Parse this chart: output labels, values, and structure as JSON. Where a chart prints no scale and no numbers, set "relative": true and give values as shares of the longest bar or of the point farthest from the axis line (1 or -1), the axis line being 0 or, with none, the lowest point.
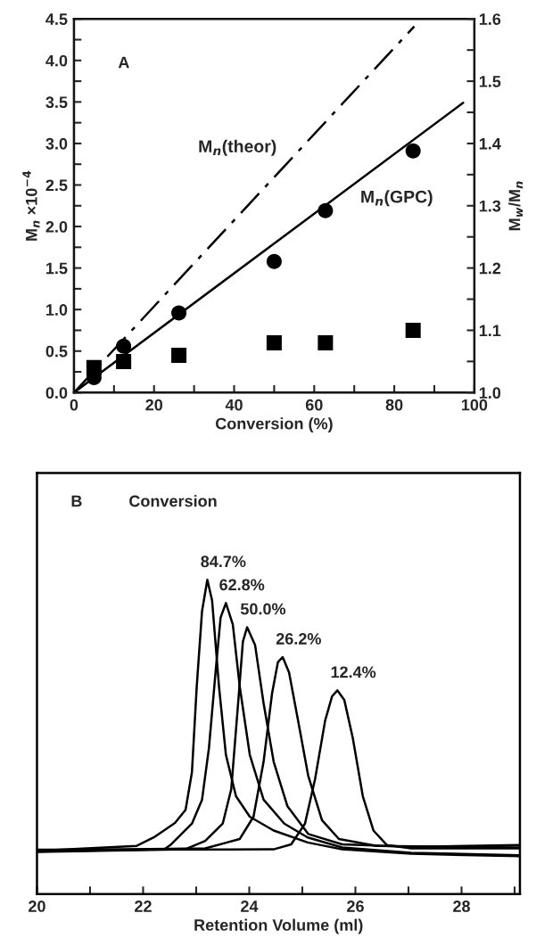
{
  "chart_data": [
    {
      "type": "scatter",
      "xlabel": "Conversion (%)",
      "ylabel": "M$_{n}$ ×10$^{−4}$",
      "y2label": "M$_{w}$/M$_{n}$",
      "xlim": [
        0,
        100
      ],
      "xticks": [
        0,
        {
          "value": 10,
          "label": null
        },
        20,
        {
          "value": 30,
          "label": null
        },
        40,
        {
          "value": 50,
          "label": null
        },
        60,
        {
          "value": 70,
          "label": null
        },
        80,
        {
          "value": 90,
          "label": null
        },
        100
      ],
      "ylim": [
        0,
        4.5
      ],
      "yticks": [
        "0.0",
        {
          "value": 0.25,
          "label": null
        },
        0.5,
        {
          "value": 0.75,
          "label": null
        },
        "1.0",
        {
          "value": 1.25,
          "label": null
        },
        1.5,
        {
          "value": 1.75,
          "label": null
        },
        "2.0",
        {
          "value": 2.25,
          "label": null
        },
        2.5,
        {
          "value": 2.75,
          "label": null
        },
        "3.0",
        {
          "value": 3.25,
          "label": null
        },
        3.5,
        {
          "value": 3.75,
          "label": null
        },
        "4.0",
        {
          "value": 4.25,
          "label": null
        },
        4.5
      ],
      "y2lim": [
        1.0,
        1.6
      ],
      "y2ticks": [
        "1.0",
        {
          "value": 1.05,
          "label": null
        },
        1.1,
        {
          "value": 1.15,
          "label": null
        },
        1.2,
        {
          "value": 1.25,
          "label": null
        },
        1.3,
        {
          "value": 1.35,
          "label": null
        },
        1.4,
        {
          "value": 1.45,
          "label": null
        },
        1.5,
        {
          "value": 1.55,
          "label": null
        },
        1.6
      ],
      "x": [
        5,
        12.4,
        26.2,
        50,
        62.8,
        84.7
      ],
      "series": [
        {
          "type": "scatter",
          "marker": "circle",
          "color": "#000000",
          "values": [
            0.18,
            0.56,
            0.96,
            1.58,
            2.19,
            2.91
          ]
        },
        {
          "type": "scatter",
          "marker": "square",
          "color": "#000000",
          "axis": "y2",
          "values": [
            1.04,
            1.05,
            1.06,
            1.08,
            1.08,
            1.1
          ]
        },
        {
          "type": "line",
          "line_style": "dashdot",
          "color": "#000000",
          "x": [
            0,
            85
          ],
          "values": [
            0,
            4.41
          ]
        },
        {
          "type": "line",
          "line_style": "solid",
          "color": "#000000",
          "x": [
            0,
            97.2
          ],
          "values": [
            0,
            3.49
          ]
        }
      ],
      "annotations": [
        "A",
        "M$_{n}$(theor)",
        "M$_{n}$(GPC)"
      ]
    },
    {
      "type": "line",
      "relative": true,
      "xlabel": "Retention Volume (ml)",
      "tick_labels": "x",
      "xlim": [
        20,
        29.1
      ],
      "xticks": [
        20,
        {
          "value": 21,
          "label": null
        },
        22,
        {
          "value": 23,
          "label": null
        },
        24,
        {
          "value": 25,
          "label": null
        },
        26,
        {
          "value": 27,
          "label": null
        },
        28,
        {
          "value": 29,
          "label": null
        }
      ],
      "series": [
        {
          "name": "84.7%",
          "color": "#000000",
          "x": [
            20,
            21.88,
            22.2,
            22.6,
            22.8,
            22.92,
            23.01,
            23.11,
            23.21,
            23.3,
            23.43,
            23.56,
            23.75,
            24.01,
            24.46,
            25.1,
            25.75,
            27.05,
            29.1
          ],
          "values": [
            0.137,
            0.153,
            0.18,
            0.226,
            0.268,
            0.388,
            0.66,
            0.9,
            1.0,
            0.934,
            0.66,
            0.443,
            0.311,
            0.246,
            0.202,
            0.164,
            0.142,
            0.128,
            0.12
          ]
        },
        {
          "name": "62.8%",
          "color": "#000000",
          "x": [
            20,
            22.4,
            22.53,
            22.92,
            23.11,
            23.24,
            23.37,
            23.46,
            23.56,
            23.69,
            23.82,
            24.01,
            24.27,
            24.66,
            25.1,
            25.75,
            27.05,
            29.1
          ],
          "values": [
            0.135,
            0.142,
            0.158,
            0.224,
            0.3,
            0.464,
            0.716,
            0.88,
            0.926,
            0.858,
            0.661,
            0.443,
            0.3,
            0.224,
            0.18,
            0.148,
            0.131,
            0.123
          ]
        },
        {
          "name": "50.0%",
          "color": "#000000",
          "x": [
            20,
            22.79,
            23.17,
            23.5,
            23.66,
            23.79,
            23.88,
            23.96,
            24.11,
            24.27,
            24.46,
            24.72,
            25.11,
            25.75,
            27.05,
            29.1
          ],
          "values": [
            0.134,
            0.142,
            0.169,
            0.224,
            0.333,
            0.607,
            0.803,
            0.849,
            0.792,
            0.607,
            0.421,
            0.279,
            0.191,
            0.158,
            0.15,
            0.156
          ]
        },
        {
          "name": "26.2%",
          "color": "#000000",
          "x": [
            20,
            23.17,
            23.82,
            24.08,
            24.27,
            24.43,
            24.54,
            24.63,
            24.75,
            24.92,
            25.11,
            25.37,
            25.69,
            26.4,
            29.1
          ],
          "values": [
            0.139,
            0.145,
            0.175,
            0.246,
            0.421,
            0.639,
            0.738,
            0.754,
            0.705,
            0.552,
            0.377,
            0.235,
            0.175,
            0.153,
            0.148
          ]
        },
        {
          "name": "12.4%",
          "color": "#000000",
          "x": [
            20,
            24.46,
            24.79,
            25.05,
            25.24,
            25.43,
            25.56,
            25.66,
            25.79,
            25.95,
            26.14,
            26.34,
            26.59,
            27.05,
            29.1
          ],
          "values": [
            0.141,
            0.142,
            0.158,
            0.224,
            0.366,
            0.552,
            0.629,
            0.648,
            0.618,
            0.497,
            0.311,
            0.202,
            0.156,
            0.145,
            0.145
          ]
        }
      ],
      "annotations": [
        "B",
        "Conversion"
      ]
    }
  ]
}
